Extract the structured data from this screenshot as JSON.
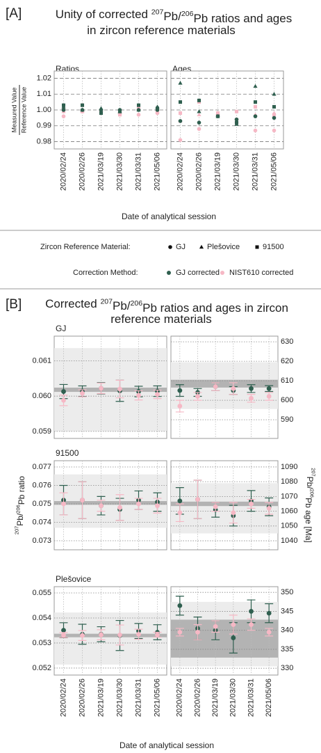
{
  "chart_data": [
    {
      "type": "scatter",
      "label": "[A]",
      "title": [
        [
          {
            "text": "Unity of corrected "
          },
          {
            "text": "207",
            "sup": true
          },
          {
            "text": "Pb/"
          },
          {
            "text": "206",
            "sup": true
          },
          {
            "text": "Pb ratios and ages"
          }
        ],
        [
          {
            "text": "in zircon reference materials"
          }
        ]
      ],
      "categories": [
        "2020/02/24",
        "2020/02/26",
        "2021/03/19",
        "2021/03/30",
        "2021/03/31",
        "2021/05/06"
      ],
      "x_label": "Date of analytical session",
      "y_label": [
        "Measured Value",
        "Reference Value"
      ],
      "ylim": [
        0.978,
        1.022
      ],
      "yticks": [
        0.98,
        0.99,
        {
          "value": 1,
          "label": "1.00"
        },
        1.01,
        1.02
      ],
      "grid": true,
      "legend": {
        "material_title": "Zircon Reference Material:",
        "materials": [
          {
            "name": "GJ",
            "marker": "circle"
          },
          {
            "name": "Plešovice",
            "marker": "triangle"
          },
          {
            "name": "91500",
            "marker": "square"
          }
        ],
        "method_title": "Correction Method:",
        "methods": [
          {
            "name": "GJ corrected",
            "color": "#2f5f4f"
          },
          {
            "name": "NIST610 corrected",
            "color": "#f6b8c5"
          }
        ]
      },
      "facets": [
        {
          "title": "Ratios",
          "series": [
            {
              "material": 0,
              "method": 1,
              "values": [
                0.996,
                0.999,
                0.999,
                0.998,
                0.997,
                0.998
              ]
            },
            {
              "material": 1,
              "method": 1,
              "values": [
                0.999,
                0.999,
                1.0,
                0.998,
                1.001,
                0.999
              ]
            },
            {
              "material": 2,
              "method": 1,
              "values": [
                1.0,
                1.003,
                0.999,
                0.997,
                1.001,
                0.999
              ]
            },
            {
              "material": 0,
              "method": 0,
              "values": [
                1.0,
                1.0,
                1.0,
                1.0,
                1.0,
                1.0
              ]
            },
            {
              "material": 1,
              "method": 0,
              "values": [
                1.002,
                1.0,
                1.001,
                0.999,
                1.0,
                1.002
              ]
            },
            {
              "material": 2,
              "method": 0,
              "values": [
                1.003,
                1.003,
                0.998,
                0.999,
                1.003,
                1.001
              ]
            }
          ]
        },
        {
          "title": "Ages",
          "series": [
            {
              "material": 0,
              "method": 1,
              "values": [
                0.981,
                0.988,
                0.997,
                0.994,
                0.987,
                0.987
              ]
            },
            {
              "material": 1,
              "method": 1,
              "values": [
                0.993,
                0.997,
                0.998,
                0.993,
                0.997,
                0.998
              ]
            },
            {
              "material": 2,
              "method": 1,
              "values": [
                0.998,
                1.005,
                0.998,
                0.999,
                1.002,
                0.997
              ]
            },
            {
              "material": 0,
              "method": 0,
              "values": [
                0.993,
                0.992,
                0.996,
                0.994,
                0.996,
                0.995
              ]
            },
            {
              "material": 1,
              "method": 0,
              "values": [
                1.017,
                0.999,
                0.996,
                0.991,
                1.015,
                1.01
              ]
            },
            {
              "material": 2,
              "method": 0,
              "values": [
                1.005,
                1.006,
                0.996,
                0.992,
                1.005,
                1.002
              ]
            }
          ]
        }
      ]
    },
    {
      "type": "errorbar",
      "label": "[B]",
      "title": [
        [
          {
            "text": "Corrected "
          },
          {
            "text": "207",
            "sup": true
          },
          {
            "text": "Pb/"
          },
          {
            "text": "206",
            "sup": true
          },
          {
            "text": "Pb ratios and ages in zircon"
          }
        ],
        [
          {
            "text": "reference materials"
          }
        ]
      ],
      "categories": [
        "2020/02/24",
        "2020/02/26",
        "2021/03/19",
        "2021/03/30",
        "2021/03/31",
        "2021/05/06"
      ],
      "x_label": "Date of analytical session",
      "y_label": [
        {
          "text": "207",
          "sup": true
        },
        {
          "text": "Pb/"
        },
        {
          "text": "206",
          "sup": true
        },
        {
          "text": "Pb ratio"
        }
      ],
      "y2_label": [
        {
          "text": "207",
          "sup": true
        },
        {
          "text": "Pb/"
        },
        {
          "text": "206",
          "sup": true
        },
        {
          "text": "Pb age [Ma]"
        }
      ],
      "grid": true,
      "rows": [
        {
          "title": "GJ",
          "left": {
            "ylim": [
              0.0588,
              0.0617
            ],
            "yticks": [
              0.059,
              {
                "value": 0.06,
                "label": "0.060"
              },
              0.061
            ],
            "range_band": {
              "value": 0.06018,
              "half_width": 0.00118
            },
            "reference_band": {
              "value": 0.06018,
              "half_width": 6e-05
            },
            "series": [
              {
                "color": "#2f5f4f",
                "values": [
                  0.06013,
                  0.06014,
                  0.06022,
                  0.06015,
                  0.06013,
                  0.06014
                ],
                "errors": [
                  0.0002,
                  0.00015,
                  0.00016,
                  0.0003,
                  0.00015,
                  0.00015
                ]
              },
              {
                "color": "#f6b8c5",
                "values": [
                  0.05988,
                  0.06008,
                  0.06022,
                  0.0602,
                  0.06002,
                  0.06005
                ],
                "errors": [
                  0.00015,
                  0.0001,
                  0.00015,
                  0.00025,
                  0.00013,
                  0.00012
                ]
              }
            ]
          },
          "right": {
            "y2lim": [
              580.4,
              632.9
            ],
            "y2ticks": [
              590,
              600,
              610,
              620,
              630
            ],
            "range_band": {
              "value": 607.5,
              "half_width": 12
            },
            "reference_band": {
              "value": 608.5,
              "half_width": 2
            },
            "series": [
              {
                "color": "#2f5f4f",
                "values": [
                  605,
                  604,
                  607,
                  605,
                  606,
                  606
                ],
                "errors": [
                  3,
                  2,
                  2,
                  2,
                  2,
                  1.5
                ]
              },
              {
                "color": "#f6b8c5",
                "values": [
                  597,
                  602,
                  607,
                  606,
                  601,
                  602
                ],
                "errors": [
                  3,
                  2,
                  2,
                  3,
                  2,
                  2
                ]
              }
            ]
          }
        },
        {
          "title": "91500",
          "left": {
            "ylim": [
              0.07251,
              0.07734
            ],
            "yticks": [
              0.073,
              0.074,
              0.075,
              0.076,
              0.077
            ],
            "range_band": {
              "value": 0.07515,
              "half_width": 0.00145
            },
            "reference_band": {
              "value": 0.07505,
              "half_width": 0.0001
            },
            "series": [
              {
                "color": "#2f5f4f",
                "values": [
                  0.0752,
                  0.0752,
                  0.0749,
                  0.0747,
                  0.0752,
                  0.0751
                ],
                "errors": [
                  0.0008,
                  0.001,
                  0.0005,
                  0.0006,
                  0.0005,
                  0.0005
                ]
              },
              {
                "color": "#f6b8c5",
                "values": [
                  0.075,
                  0.0752,
                  0.0749,
                  0.0748,
                  0.075,
                  0.0749
                ],
                "errors": [
                  0.0006,
                  0.001,
                  0.0003,
                  0.0007,
                  0.0003,
                  0.0004
                ]
              }
            ]
          },
          "right": {
            "y2lim": [
              1033.9,
              1094.2
            ],
            "y2ticks": [
              1040,
              1050,
              1060,
              1070,
              1080,
              1090
            ],
            "range_band": {
              "value": 1062,
              "half_width": 17
            },
            "reference_band": {
              "value": 1065,
              "half_width": 1.5
            },
            "series": [
              {
                "color": "#2f5f4f",
                "values": [
                  1067,
                  1068,
                  1061,
                  1057,
                  1067,
                  1063
                ],
                "errors": [
                  9,
                  13,
                  5,
                  7,
                  7,
                  6
                ]
              },
              {
                "color": "#f6b8c5",
                "values": [
                  1059,
                  1068,
                  1063,
                  1059,
                  1065,
                  1062
                ],
                "errors": [
                  6,
                  13,
                  3,
                  7,
                  3,
                  4
                ]
              }
            ]
          }
        },
        {
          "title": "Plešovice",
          "left": {
            "ylim": [
              0.05172,
              0.05525
            ],
            "yticks": [
              0.052,
              0.053,
              0.054,
              0.055
            ],
            "range_band": {
              "value": 0.05318,
              "half_width": 0.00104
            },
            "reference_band": {
              "value": 0.0533,
              "half_width": 7e-05
            },
            "series": [
              {
                "color": "#2f5f4f",
                "values": [
                  0.05351,
                  0.05335,
                  0.05335,
                  0.0533,
                  0.05348,
                  0.05343
                ],
                "errors": [
                  0.0003,
                  0.0004,
                  0.0003,
                  0.0006,
                  0.0003,
                  0.0003
                ]
              },
              {
                "color": "#f6b8c5",
                "values": [
                  0.05332,
                  0.0533,
                  0.05333,
                  0.05332,
                  0.05335,
                  0.05333
                ],
                "errors": [
                  0.0001,
                  0.0002,
                  0.0002,
                  0.0004,
                  0.0002,
                  0.0001
                ]
              }
            ]
          },
          "right": {
            "y2lim": [
              328.2,
              351.5
            ],
            "y2ticks": [
              330,
              335,
              340,
              345,
              350
            ],
            "range_band": {
              "value": 339,
              "half_width": 8.5
            },
            "reference_band": {
              "value": 337.8,
              "half_width": 5
            },
            "series": [
              {
                "color": "#2f5f4f",
                "values": [
                  346.5,
                  340.5,
                  340,
                  338,
                  345,
                  344.5
                ],
                "errors": [
                  2.5,
                  3,
                  2.5,
                  4,
                  3,
                  2.5
                ]
              },
              {
                "color": "#f6b8c5",
                "values": [
                  339.5,
                  339.5,
                  341,
                  341.5,
                  341.5,
                  339.5
                ],
                "errors": [
                  1,
                  2,
                  1.5,
                  2.5,
                  1.5,
                  1
                ]
              }
            ]
          }
        }
      ]
    }
  ]
}
